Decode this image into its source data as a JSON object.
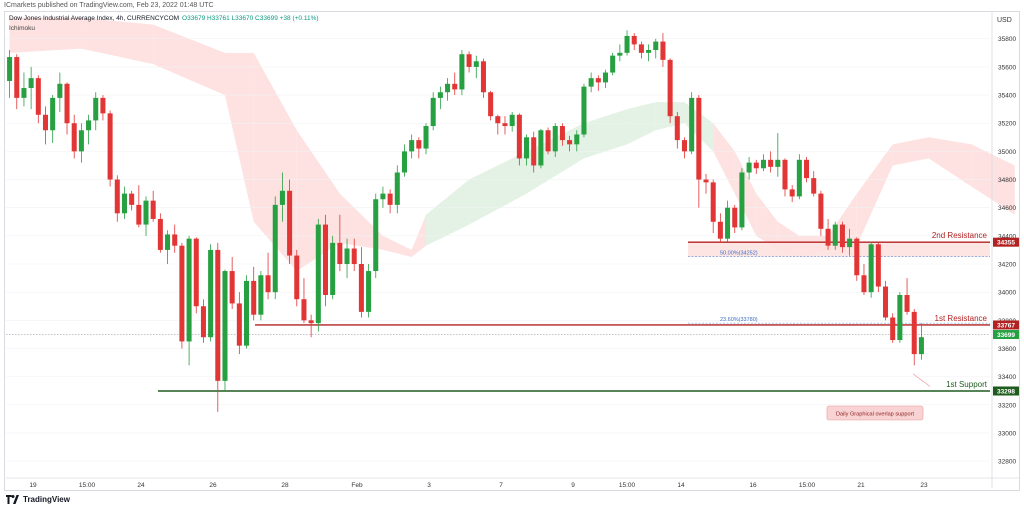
{
  "header": {
    "published": "ICmarkets published on TradingView.com, Feb 23, 2022 01:48 UTC",
    "symbol": "Dow Jones Industrial Average Index, 4h, CURRENCYCOM",
    "ohlc": "O33679 H33761 L33670 C33699 +38 (+0.11%)",
    "indicator": "Ichimoku"
  },
  "footer": {
    "brand": "TradingView"
  },
  "colors": {
    "up": "#26a041",
    "down": "#e23535",
    "cloud_bull": "#e3f2e4",
    "cloud_bear": "#fde2e1",
    "resistance": "#b22222",
    "support": "#1e5c1e"
  },
  "chart_data": {
    "type": "candlestick",
    "currency": "USD",
    "y_ticks": [
      32800,
      33000,
      33200,
      33400,
      33600,
      33800,
      34000,
      34200,
      34400,
      34600,
      34800,
      35000,
      35200,
      35400,
      35600,
      35800
    ],
    "ylim": [
      32680,
      35990
    ],
    "x_ticks": [
      "19",
      "15:00",
      "24",
      "26",
      "28",
      "Feb",
      "3",
      "7",
      "9",
      "15:00",
      "14",
      "16",
      "15:00",
      "21",
      "23"
    ],
    "last_price": 33699,
    "levels": [
      {
        "name": "2nd Resistance",
        "value": 34355
      },
      {
        "name": "1st Resistance",
        "value": 33767
      },
      {
        "name": "1st Support",
        "value": 33298
      }
    ],
    "fib_labels": [
      {
        "label": "50.00%(34252)",
        "value": 34252
      },
      {
        "label": "23.60%(33780)",
        "value": 33780
      }
    ],
    "annotation": "Daily Graphical overlap support",
    "candles": [
      [
        35500,
        35720,
        35380,
        35670
      ],
      [
        35670,
        35690,
        35300,
        35380
      ],
      [
        35380,
        35560,
        35320,
        35450
      ],
      [
        35450,
        35600,
        35300,
        35520
      ],
      [
        35520,
        35540,
        35200,
        35260
      ],
      [
        35260,
        35320,
        35050,
        35150
      ],
      [
        35150,
        35400,
        35060,
        35380
      ],
      [
        35380,
        35560,
        35280,
        35480
      ],
      [
        35480,
        35490,
        35120,
        35200
      ],
      [
        35200,
        35260,
        34950,
        35000
      ],
      [
        35000,
        35200,
        34920,
        35150
      ],
      [
        35150,
        35260,
        35050,
        35220
      ],
      [
        35220,
        35420,
        35150,
        35380
      ],
      [
        35380,
        35400,
        35220,
        35270
      ],
      [
        35270,
        35290,
        34750,
        34800
      ],
      [
        34800,
        34830,
        34500,
        34560
      ],
      [
        34560,
        34750,
        34520,
        34700
      ],
      [
        34700,
        34720,
        34580,
        34620
      ],
      [
        34620,
        34760,
        34460,
        34480
      ],
      [
        34480,
        34680,
        34400,
        34650
      ],
      [
        34650,
        34720,
        34500,
        34520
      ],
      [
        34520,
        34560,
        34280,
        34300
      ],
      [
        34300,
        34440,
        34200,
        34410
      ],
      [
        34410,
        34480,
        34280,
        34330
      ],
      [
        34330,
        34350,
        33600,
        33650
      ],
      [
        33650,
        34400,
        33480,
        34380
      ],
      [
        34380,
        34390,
        33850,
        33900
      ],
      [
        33900,
        33950,
        33640,
        33680
      ],
      [
        33680,
        34340,
        33650,
        34300
      ],
      [
        34300,
        34350,
        33150,
        33370
      ],
      [
        33370,
        34160,
        33300,
        34150
      ],
      [
        34150,
        34250,
        33880,
        33920
      ],
      [
        33920,
        34000,
        33560,
        33620
      ],
      [
        33620,
        34120,
        33600,
        34080
      ],
      [
        34080,
        34180,
        33800,
        33840
      ],
      [
        33840,
        34150,
        33800,
        34120
      ],
      [
        34120,
        34280,
        33950,
        34000
      ],
      [
        34000,
        34680,
        33950,
        34620
      ],
      [
        34620,
        34850,
        34500,
        34720
      ],
      [
        34720,
        34800,
        34200,
        34260
      ],
      [
        34260,
        34300,
        33900,
        33950
      ],
      [
        33950,
        34100,
        33780,
        33800
      ],
      [
        33800,
        33840,
        33680,
        33780
      ],
      [
        33780,
        34520,
        33720,
        34480
      ],
      [
        34480,
        34550,
        33900,
        33980
      ],
      [
        33980,
        34400,
        33950,
        34350
      ],
      [
        34350,
        34550,
        34150,
        34200
      ],
      [
        34200,
        34380,
        34100,
        34310
      ],
      [
        34310,
        34380,
        34150,
        34200
      ],
      [
        34200,
        34320,
        33820,
        33860
      ],
      [
        33860,
        34200,
        33820,
        34150
      ],
      [
        34150,
        34700,
        34100,
        34660
      ],
      [
        34660,
        34750,
        34600,
        34700
      ],
      [
        34700,
        34730,
        34560,
        34620
      ],
      [
        34620,
        34900,
        34560,
        34850
      ],
      [
        34850,
        35050,
        34820,
        35000
      ],
      [
        35000,
        35120,
        34950,
        35080
      ],
      [
        35080,
        35100,
        34950,
        35020
      ],
      [
        35020,
        35200,
        34980,
        35180
      ],
      [
        35180,
        35420,
        35150,
        35380
      ],
      [
        35380,
        35460,
        35300,
        35420
      ],
      [
        35420,
        35520,
        35360,
        35480
      ],
      [
        35480,
        35560,
        35400,
        35440
      ],
      [
        35440,
        35720,
        35400,
        35690
      ],
      [
        35690,
        35710,
        35560,
        35600
      ],
      [
        35600,
        35680,
        35520,
        35640
      ],
      [
        35640,
        35660,
        35380,
        35420
      ],
      [
        35420,
        35430,
        35220,
        35250
      ],
      [
        35250,
        35260,
        35120,
        35200
      ],
      [
        35200,
        35250,
        35120,
        35180
      ],
      [
        35180,
        35280,
        35140,
        35260
      ],
      [
        35260,
        35270,
        34900,
        34950
      ],
      [
        34950,
        35120,
        34900,
        35100
      ],
      [
        35100,
        35140,
        34850,
        34900
      ],
      [
        34900,
        35160,
        34880,
        35150
      ],
      [
        35150,
        35170,
        34980,
        35000
      ],
      [
        35000,
        35200,
        34960,
        35180
      ],
      [
        35180,
        35200,
        35040,
        35080
      ],
      [
        35080,
        35110,
        35000,
        35050
      ],
      [
        35050,
        35150,
        35000,
        35120
      ],
      [
        35120,
        35480,
        35100,
        35460
      ],
      [
        35460,
        35560,
        35420,
        35520
      ],
      [
        35520,
        35540,
        35430,
        35490
      ],
      [
        35490,
        35580,
        35450,
        35560
      ],
      [
        35560,
        35700,
        35540,
        35680
      ],
      [
        35680,
        35760,
        35640,
        35700
      ],
      [
        35700,
        35860,
        35680,
        35820
      ],
      [
        35820,
        35840,
        35720,
        35760
      ],
      [
        35760,
        35780,
        35660,
        35700
      ],
      [
        35700,
        35760,
        35640,
        35720
      ],
      [
        35720,
        35800,
        35660,
        35780
      ],
      [
        35780,
        35840,
        35600,
        35650
      ],
      [
        35650,
        35660,
        35200,
        35250
      ],
      [
        35250,
        35280,
        35020,
        35080
      ],
      [
        35080,
        35100,
        34950,
        35000
      ],
      [
        35000,
        35420,
        34980,
        35380
      ],
      [
        35380,
        35400,
        34600,
        34800
      ],
      [
        34800,
        34840,
        34700,
        34780
      ],
      [
        34780,
        34800,
        34420,
        34500
      ],
      [
        34500,
        34560,
        34350,
        34380
      ],
      [
        34380,
        34650,
        34360,
        34600
      ],
      [
        34600,
        34620,
        34420,
        34460
      ],
      [
        34460,
        34880,
        34440,
        34850
      ],
      [
        34850,
        34960,
        34800,
        34920
      ],
      [
        34920,
        34940,
        34840,
        34880
      ],
      [
        34880,
        34980,
        34860,
        34940
      ],
      [
        34940,
        35000,
        34850,
        34890
      ],
      [
        34890,
        35130,
        34820,
        34940
      ],
      [
        34940,
        34950,
        34680,
        34730
      ],
      [
        34730,
        34760,
        34640,
        34680
      ],
      [
        34680,
        34980,
        34660,
        34940
      ],
      [
        34940,
        34960,
        34780,
        34810
      ],
      [
        34810,
        34860,
        34680,
        34700
      ],
      [
        34700,
        34720,
        34400,
        34450
      ],
      [
        34450,
        34520,
        34300,
        34330
      ],
      [
        34330,
        34500,
        34300,
        34480
      ],
      [
        34480,
        34500,
        34280,
        34320
      ],
      [
        34320,
        34450,
        34260,
        34380
      ],
      [
        34380,
        34390,
        34080,
        34120
      ],
      [
        34120,
        34200,
        33980,
        34000
      ],
      [
        34000,
        34360,
        33960,
        34340
      ],
      [
        34340,
        34350,
        34000,
        34040
      ],
      [
        34040,
        34080,
        33800,
        33820
      ],
      [
        33820,
        33850,
        33640,
        33660
      ],
      [
        33660,
        34000,
        33640,
        33980
      ],
      [
        33980,
        34100,
        33840,
        33860
      ],
      [
        33860,
        33880,
        33480,
        33560
      ],
      [
        33560,
        33780,
        33520,
        33680
      ]
    ],
    "kumo": [
      [
        0,
        35950,
        35700
      ],
      [
        10,
        35950,
        35730
      ],
      [
        20,
        35900,
        35620
      ],
      [
        30,
        35700,
        35400
      ],
      [
        34,
        35700,
        34500
      ],
      [
        40,
        35150,
        34150
      ],
      [
        46,
        34700,
        34350
      ],
      [
        52,
        34400,
        34300
      ],
      [
        56,
        34300,
        34250
      ],
      [
        58,
        34550,
        34330
      ],
      [
        64,
        34800,
        34480
      ],
      [
        72,
        35000,
        34700
      ],
      [
        80,
        35200,
        34950
      ],
      [
        86,
        35300,
        35050
      ],
      [
        90,
        35350,
        35150
      ],
      [
        94,
        35350,
        35200
      ],
      [
        98,
        35200,
        35000
      ],
      [
        101,
        35000,
        34700
      ],
      [
        104,
        34700,
        34400
      ],
      [
        107,
        34500,
        34300
      ],
      [
        110,
        34400,
        34250
      ],
      [
        114,
        34400,
        34300
      ],
      [
        118,
        34700,
        34330
      ],
      [
        123,
        35050,
        34900
      ],
      [
        128,
        35100,
        34950
      ],
      [
        134,
        35050,
        34750
      ],
      [
        140,
        34900,
        34550
      ]
    ]
  }
}
